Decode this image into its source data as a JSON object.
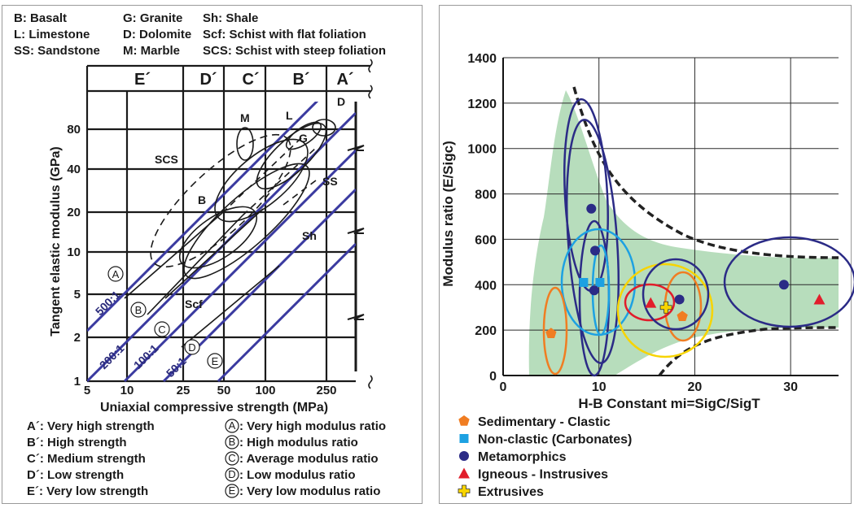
{
  "left": {
    "abbrev_legend": [
      {
        "code": "B",
        "text": "B: Basalt"
      },
      {
        "code": "L",
        "text": "L: Limestone"
      },
      {
        "code": "SS",
        "text": "SS: Sandstone"
      },
      {
        "code": "G",
        "text": "G: Granite"
      },
      {
        "code": "D",
        "text": "D: Dolomite"
      },
      {
        "code": "M",
        "text": "M: Marble"
      },
      {
        "code": "Sh",
        "text": "Sh: Shale"
      },
      {
        "code": "Scf",
        "text": "Scf: Schist with flat foliation"
      },
      {
        "code": "SCS",
        "text": "SCS: Schist with steep foliation"
      }
    ],
    "zones": [
      "E´",
      "D´",
      "C´",
      "B´",
      "A´"
    ],
    "xlabel": "Uniaxial compressive strength (MPa)",
    "ylabel": "Tangent elastic modulus (GPa)",
    "x_ticks": [
      "5",
      "10",
      "25",
      "50",
      "100",
      "250"
    ],
    "y_ticks": [
      "1",
      "2",
      "5",
      "10",
      "20",
      "40",
      "80"
    ],
    "ratio_lines": [
      "500:1",
      "200:1",
      "100:1",
      "50:1"
    ],
    "ratio_circles": [
      "A",
      "B",
      "C",
      "D",
      "E"
    ],
    "rock_labels": [
      "M",
      "L",
      "D",
      "G",
      "SCS",
      "SS",
      "B",
      "Sh",
      "Scf"
    ],
    "strength_legend": [
      "A´: Very high strength",
      "B´: High strength",
      "C´: Medium strength",
      "D´: Low strength",
      "E´: Very low strength"
    ],
    "ratio_legend": [
      {
        "mark": "A",
        "text": ": Very high modulus ratio"
      },
      {
        "mark": "B",
        "text": ": High modulus ratio"
      },
      {
        "mark": "C",
        "text": ": Average modulus ratio"
      },
      {
        "mark": "D",
        "text": ": Low modulus ratio"
      },
      {
        "mark": "E",
        "text": ": Very low modulus ratio"
      }
    ]
  },
  "chart_data": {
    "type": "scatter",
    "xlabel": "H-B Constant mi=SigC/SigT",
    "ylabel": "Modulus ratio (E/Sigc)",
    "xlim": [
      0,
      35
    ],
    "ylim": [
      0,
      1400
    ],
    "x_ticks": [
      0,
      10,
      20,
      30
    ],
    "y_ticks": [
      0,
      200,
      400,
      600,
      800,
      1000,
      1200,
      1400
    ],
    "series": [
      {
        "name": "Sedimentary - Clastic",
        "marker": "pentagon",
        "color": "#f07d22",
        "points": [
          [
            5,
            185
          ],
          [
            18.7,
            260
          ]
        ]
      },
      {
        "name": "Non-clastic (Carbonates)",
        "marker": "square",
        "color": "#1da1e2",
        "points": [
          [
            8.4,
            410
          ],
          [
            10.1,
            410
          ]
        ]
      },
      {
        "name": "Metamorphics",
        "marker": "circle",
        "color": "#2b2b86",
        "points": [
          [
            9.2,
            735
          ],
          [
            9.6,
            550
          ],
          [
            9.5,
            375
          ],
          [
            18.4,
            335
          ],
          [
            29.3,
            400
          ]
        ]
      },
      {
        "name": "Igneous - Instrusives",
        "marker": "triangle",
        "color": "#e11d2b",
        "points": [
          [
            15.4,
            320
          ],
          [
            33,
            335
          ]
        ]
      },
      {
        "name": "Extrusives",
        "marker": "cross",
        "color": "#f7d400",
        "points": [
          [
            17,
            300
          ]
        ]
      }
    ],
    "legend_position": "bottom-left",
    "grid": true
  }
}
